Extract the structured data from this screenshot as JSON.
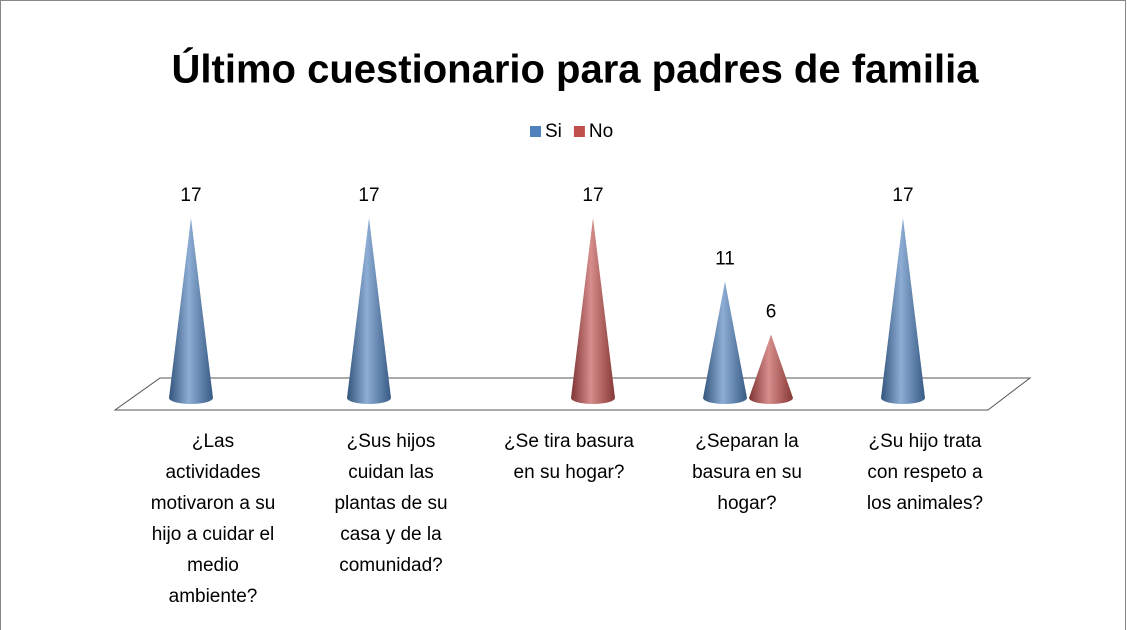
{
  "chart_data": {
    "type": "cone",
    "title": "Último cuestionario para padres de familia",
    "categories": [
      "¿Las actividades motivaron a su hijo a cuidar el medio ambiente?",
      "¿Sus hijos cuidan las plantas de su casa y de la comunidad?",
      "¿Se tira basura en su hogar?",
      "¿Separan la basura en su hogar?",
      "¿Su hijo trata con respeto a los animales?"
    ],
    "series": [
      {
        "name": "Si",
        "color": "#4f81bd",
        "values": [
          17,
          17,
          null,
          11,
          17
        ]
      },
      {
        "name": "No",
        "color": "#c0504d",
        "values": [
          null,
          null,
          17,
          6,
          null
        ]
      }
    ],
    "legend": "top"
  }
}
